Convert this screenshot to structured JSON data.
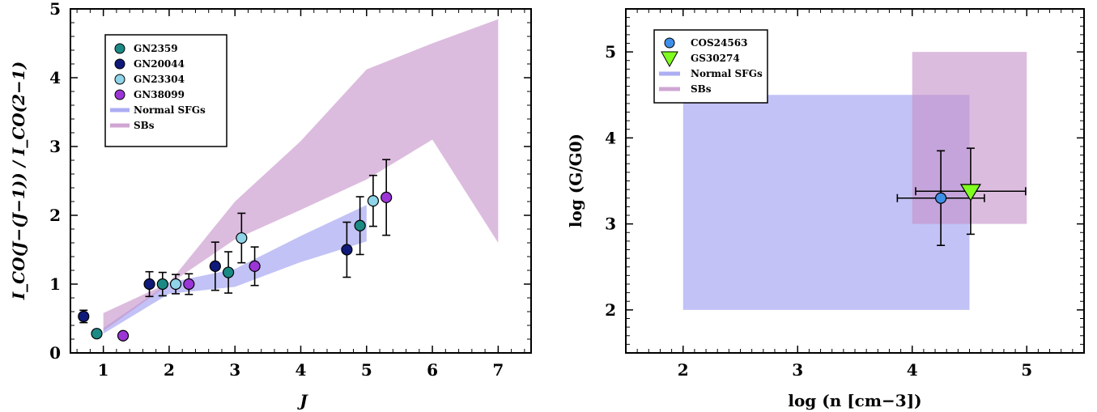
{
  "chart_data": [
    {
      "type": "scatter",
      "xlabel": "J",
      "ylabel": "I_CO(J−(J−1)) / I_CO(2−1)",
      "xlim": [
        0.5,
        7.5
      ],
      "ylim": [
        0,
        5
      ],
      "xticks": [
        1,
        2,
        3,
        4,
        5,
        6,
        7
      ],
      "yticks": [
        0,
        1,
        2,
        3,
        4,
        5
      ],
      "legend_position": "top-left",
      "series": [
        {
          "name": "GN2359",
          "color": "#1b8a85",
          "points": [
            {
              "x": 0.9,
              "y": 0.28,
              "yerr": 0.04
            },
            {
              "x": 1.9,
              "y": 1.0,
              "yerr": 0.17
            },
            {
              "x": 2.9,
              "y": 1.17,
              "yerr": 0.3
            },
            {
              "x": 4.9,
              "y": 1.85,
              "yerr": 0.42
            }
          ]
        },
        {
          "name": "GN20044",
          "color": "#0f1a7a",
          "points": [
            {
              "x": 0.7,
              "y": 0.53,
              "yerr": 0.09
            },
            {
              "x": 1.7,
              "y": 1.0,
              "yerr": 0.18
            },
            {
              "x": 2.7,
              "y": 1.26,
              "yerr": 0.35
            },
            {
              "x": 4.7,
              "y": 1.5,
              "yerr": 0.4
            }
          ]
        },
        {
          "name": "GN23304",
          "color": "#8fd4e8",
          "points": [
            {
              "x": 2.1,
              "y": 1.0,
              "yerr": 0.14
            },
            {
              "x": 3.1,
              "y": 1.67,
              "yerr": 0.36
            },
            {
              "x": 5.1,
              "y": 2.21,
              "yerr": 0.37
            }
          ]
        },
        {
          "name": "GN38099",
          "color": "#9b35d6",
          "points": [
            {
              "x": 1.3,
              "y": 0.25,
              "yerr": 0
            },
            {
              "x": 2.3,
              "y": 1.0,
              "yerr": 0.15
            },
            {
              "x": 3.3,
              "y": 1.26,
              "yerr": 0.28
            },
            {
              "x": 5.3,
              "y": 2.26,
              "yerr": 0.55
            }
          ]
        }
      ],
      "bands": [
        {
          "name": "Normal SFGs",
          "color": "#9999f0",
          "opacity": 0.6,
          "x": [
            1,
            2,
            3,
            4,
            5
          ],
          "lower": [
            0.28,
            0.86,
            0.96,
            1.32,
            1.62
          ],
          "upper": [
            0.36,
            1.02,
            1.22,
            1.7,
            2.15
          ]
        },
        {
          "name": "SBs",
          "color": "#c48fc8",
          "opacity": 0.6,
          "x": [
            1,
            2,
            3,
            4,
            5,
            6,
            7
          ],
          "lower": [
            0.32,
            1.0,
            1.65,
            2.08,
            2.52,
            3.1,
            1.6
          ],
          "upper": [
            0.58,
            1.02,
            2.2,
            3.08,
            4.12,
            4.5,
            4.85
          ]
        }
      ]
    },
    {
      "type": "scatter",
      "xlabel": "log (n [cm−3])",
      "ylabel": "log (G/G0)",
      "xlim": [
        1.5,
        5.5
      ],
      "ylim": [
        1.5,
        5.5
      ],
      "xticks": [
        2,
        3,
        4,
        5
      ],
      "yticks": [
        2,
        3,
        4,
        5
      ],
      "legend_position": "top-left",
      "series": [
        {
          "name": "COS24563",
          "color": "#3d8fe8",
          "marker": "circle",
          "points": [
            {
              "x": 4.25,
              "y": 3.3,
              "xerr": 0.38,
              "yerr": 0.55
            }
          ]
        },
        {
          "name": "GS30274",
          "color": "#7fff1f",
          "marker": "triangle-down",
          "points": [
            {
              "x": 4.51,
              "y": 3.38,
              "xerr": 0.48,
              "yerr": 0.5
            }
          ]
        }
      ],
      "regions": [
        {
          "name": "Normal SFGs",
          "color": "#9999f0",
          "opacity": 0.6,
          "x": [
            2,
            4.5
          ],
          "y": [
            2,
            4.5
          ]
        },
        {
          "name": "SBs",
          "color": "#c48fc8",
          "opacity": 0.6,
          "x": [
            4,
            5
          ],
          "y": [
            3,
            5
          ]
        }
      ]
    }
  ]
}
